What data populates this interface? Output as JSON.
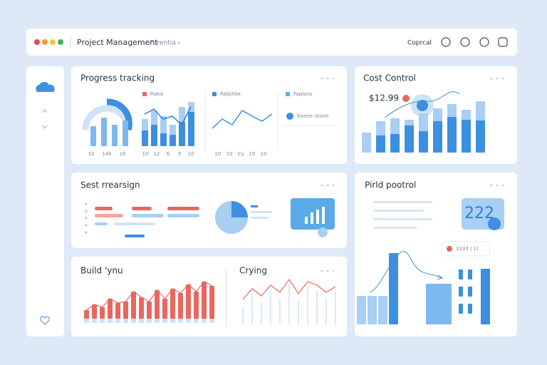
{
  "header": {
    "title": "Project Management",
    "breadcrumb": "Forentia ›",
    "user": "Coprcal"
  },
  "progress": {
    "title": "Progress tracking",
    "legend": [
      "Rakis",
      "Ratphiie",
      "Faplans",
      "Eeetie otiont"
    ],
    "donut_bars": [
      28,
      40,
      30,
      36
    ],
    "donut_axis": [
      "10",
      "14k",
      "16"
    ],
    "combo_light": [
      38,
      50,
      42,
      30,
      55,
      62
    ],
    "combo_dark": [
      22,
      30,
      18,
      16,
      34,
      48
    ],
    "combo_line": [
      45,
      52,
      38,
      42,
      30,
      55
    ],
    "combo_axis": [
      "10",
      "12",
      "6",
      "9",
      "10"
    ],
    "trend": [
      25,
      38,
      30,
      50,
      42,
      35,
      45
    ],
    "trend_axis": [
      "10",
      "10",
      "Cy",
      "10",
      "10"
    ]
  },
  "cost": {
    "title": "Cost Control",
    "amount": "$12.99",
    "light": [
      28,
      44,
      48,
      46,
      55,
      62,
      68,
      60,
      72
    ],
    "dark": [
      0,
      24,
      26,
      38,
      30,
      44,
      50,
      46,
      45
    ]
  },
  "design": {
    "title": "Sest rrearsign"
  },
  "build": {
    "title": "Pirld pootrol",
    "kpi": "222",
    "tooltip": "1S33 | 1!",
    "bars": [
      40,
      40,
      40,
      100,
      78
    ]
  },
  "bottom": {
    "title": "Build 'ynu",
    "bars": [
      12,
      20,
      16,
      28,
      22,
      24,
      38,
      30,
      24,
      40,
      28,
      42,
      36,
      48,
      38,
      52,
      46
    ],
    "second_title": "Crying",
    "wave": [
      20,
      35,
      25,
      40,
      30,
      48,
      28,
      45,
      40,
      30,
      38
    ]
  }
}
